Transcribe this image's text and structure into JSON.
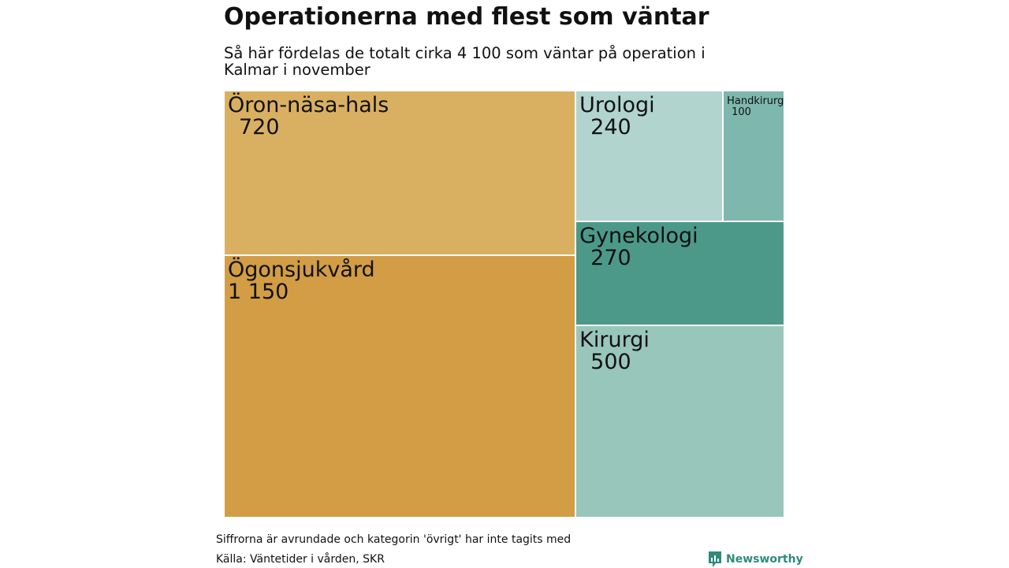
{
  "chart_data": {
    "type": "treemap",
    "title": "Operationerna med flest som väntar",
    "subtitle": "Så här fördelas de totalt cirka 4 100 som väntar på operation i Kalmar i november",
    "total": 4100,
    "items": [
      {
        "label": "Öron-näsa-hals",
        "value": 720,
        "value_label": "720",
        "color": "#d9b062"
      },
      {
        "label": "Ögonsjukvård",
        "value": 1150,
        "value_label": "1 150",
        "color": "#d29d45"
      },
      {
        "label": "Urologi",
        "value": 240,
        "value_label": "240",
        "color": "#b1d4ce"
      },
      {
        "label": "Handkirurgi",
        "value": 100,
        "value_label": "100",
        "color": "#7db7ad"
      },
      {
        "label": "Gynekologi",
        "value": 270,
        "value_label": "270",
        "color": "#4c998a"
      },
      {
        "label": "Kirurgi",
        "value": 500,
        "value_label": "500",
        "color": "#98c6ba"
      }
    ]
  },
  "footer": {
    "note": "Siffrorna är avrundade och kategorin 'övrigt' har inte tagits med",
    "source": "Källa: Väntetider i vården, SKR"
  },
  "brand": {
    "name": "Newsworthy",
    "color": "#2e8b7a"
  }
}
